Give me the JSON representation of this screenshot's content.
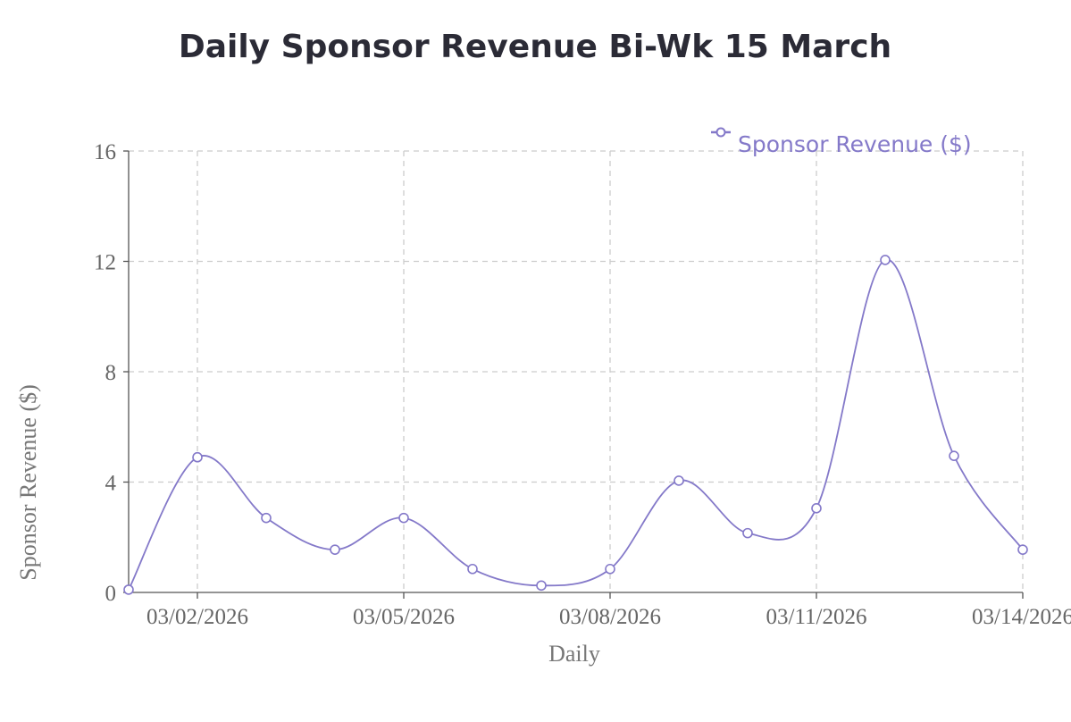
{
  "chart_data": {
    "type": "line",
    "title": "Daily Sponsor Revenue Bi-Wk 15 March",
    "xlabel": "Daily",
    "ylabel": "Sponsor Revenue ($)",
    "x": [
      "03/01/2026",
      "03/02/2026",
      "03/03/2026",
      "03/04/2026",
      "03/05/2026",
      "03/06/2026",
      "03/07/2026",
      "03/08/2026",
      "03/09/2026",
      "03/10/2026",
      "03/11/2026",
      "03/12/2026",
      "03/13/2026",
      "03/14/2026"
    ],
    "x_tick_labels": [
      "03/02/2026",
      "03/05/2026",
      "03/08/2026",
      "03/11/2026",
      "03/14/2026"
    ],
    "y_ticks": [
      0,
      4,
      8,
      12,
      16
    ],
    "ylim": [
      0,
      16
    ],
    "grid": true,
    "legend_position": "top-right",
    "series": [
      {
        "name": "Sponsor Revenue ($)",
        "color": "#8479c9",
        "values": [
          0.1,
          4.9,
          2.7,
          1.55,
          2.7,
          0.85,
          0.25,
          0.85,
          4.05,
          2.15,
          3.05,
          12.05,
          4.95,
          1.55
        ]
      }
    ]
  }
}
